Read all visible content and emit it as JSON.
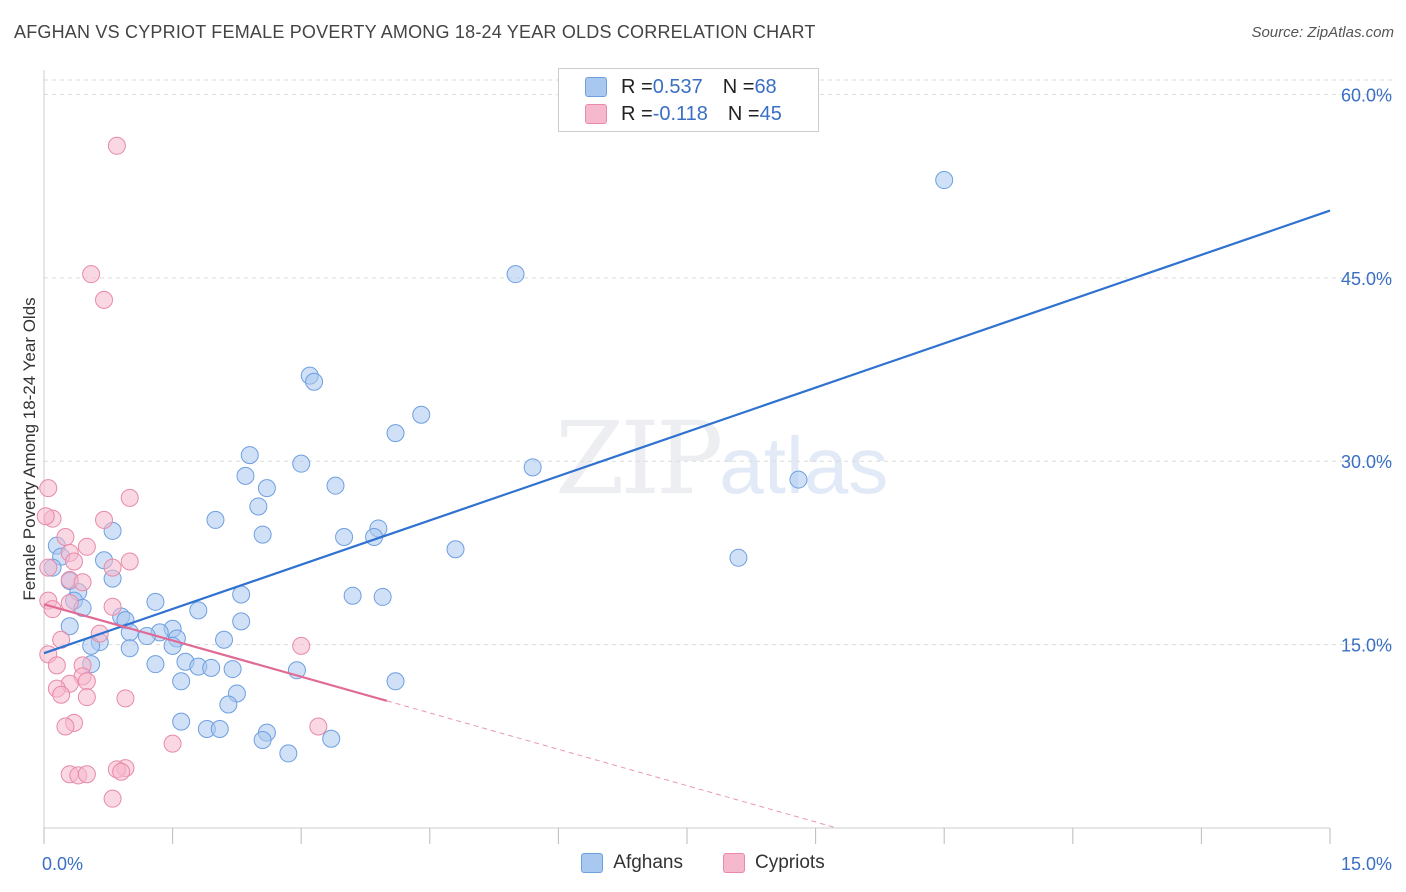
{
  "title": "AFGHAN VS CYPRIOT FEMALE POVERTY AMONG 18-24 YEAR OLDS CORRELATION CHART",
  "source": "Source: ZipAtlas.com",
  "watermark": {
    "a": "ZIP",
    "b": "atlas"
  },
  "legend": {
    "rows": [
      {
        "r_label": "R = ",
        "r_value": "0.537",
        "n_label": "N = ",
        "n_value": "68",
        "color": "#a9c8f0"
      },
      {
        "r_label": "R = ",
        "r_value": "-0.118",
        "n_label": "N = ",
        "n_value": "45",
        "color": "#f5b8cc"
      }
    ],
    "bottom": [
      "Afghans",
      "Cypriots"
    ]
  },
  "chart_data": {
    "type": "scatter",
    "title": "AFGHAN VS CYPRIOT FEMALE POVERTY AMONG 18-24 YEAR OLDS CORRELATION CHART",
    "xlabel": "",
    "ylabel": "Female Poverty Among 18-24 Year Olds",
    "xlim": [
      0,
      15
    ],
    "ylim": [
      0,
      62
    ],
    "x_tick_labels": [
      {
        "value": 0,
        "label": "0.0%"
      },
      {
        "value": 15,
        "label": "15.0%"
      }
    ],
    "y_tick_labels": [
      {
        "value": 15,
        "label": "15.0%"
      },
      {
        "value": 30,
        "label": "30.0%"
      },
      {
        "value": 45,
        "label": "45.0%"
      },
      {
        "value": 60,
        "label": "60.0%"
      }
    ],
    "grid": true,
    "series": [
      {
        "name": "Afghans",
        "color": "#a9c8f0",
        "stroke": "#6e9fe0",
        "trend": {
          "x0": 0.0,
          "y0": 14.3,
          "x1": 15.0,
          "y1": 50.5,
          "color": "#2f72d0"
        },
        "points": [
          [
            10.5,
            53.0
          ],
          [
            5.5,
            45.3
          ],
          [
            3.1,
            37.0
          ],
          [
            3.15,
            36.5
          ],
          [
            4.4,
            33.8
          ],
          [
            4.1,
            32.3
          ],
          [
            2.4,
            30.5
          ],
          [
            3.0,
            29.8
          ],
          [
            5.7,
            29.5
          ],
          [
            2.35,
            28.8
          ],
          [
            3.4,
            28.0
          ],
          [
            2.6,
            27.8
          ],
          [
            8.8,
            28.5
          ],
          [
            2.5,
            26.3
          ],
          [
            2.0,
            25.2
          ],
          [
            3.9,
            24.5
          ],
          [
            0.8,
            24.3
          ],
          [
            2.55,
            24.0
          ],
          [
            3.5,
            23.8
          ],
          [
            3.85,
            23.8
          ],
          [
            0.15,
            23.1
          ],
          [
            4.8,
            22.8
          ],
          [
            0.2,
            22.2
          ],
          [
            0.7,
            21.9
          ],
          [
            8.1,
            22.1
          ],
          [
            0.1,
            21.3
          ],
          [
            0.3,
            20.2
          ],
          [
            0.8,
            20.4
          ],
          [
            2.3,
            19.1
          ],
          [
            0.4,
            19.3
          ],
          [
            3.6,
            19.0
          ],
          [
            3.95,
            18.9
          ],
          [
            0.35,
            18.6
          ],
          [
            1.3,
            18.5
          ],
          [
            1.8,
            17.8
          ],
          [
            0.9,
            17.3
          ],
          [
            0.3,
            16.5
          ],
          [
            0.95,
            17.0
          ],
          [
            2.3,
            16.9
          ],
          [
            1.0,
            16.0
          ],
          [
            1.5,
            16.3
          ],
          [
            1.35,
            16.0
          ],
          [
            1.2,
            15.7
          ],
          [
            1.55,
            15.5
          ],
          [
            0.65,
            15.2
          ],
          [
            0.55,
            14.9
          ],
          [
            2.1,
            15.4
          ],
          [
            1.0,
            14.7
          ],
          [
            1.5,
            14.9
          ],
          [
            1.3,
            13.4
          ],
          [
            1.65,
            13.6
          ],
          [
            0.55,
            13.4
          ],
          [
            1.8,
            13.2
          ],
          [
            1.95,
            13.1
          ],
          [
            2.2,
            13.0
          ],
          [
            2.95,
            12.9
          ],
          [
            1.6,
            12.0
          ],
          [
            4.1,
            12.0
          ],
          [
            2.25,
            11.0
          ],
          [
            2.15,
            10.1
          ],
          [
            1.6,
            8.7
          ],
          [
            1.9,
            8.1
          ],
          [
            2.05,
            8.1
          ],
          [
            2.6,
            7.8
          ],
          [
            3.35,
            7.3
          ],
          [
            2.55,
            7.2
          ],
          [
            2.85,
            6.1
          ],
          [
            0.45,
            18.0
          ]
        ]
      },
      {
        "name": "Cypriots",
        "color": "#f5b8cc",
        "stroke": "#e88aa8",
        "trend": {
          "x0": 0.0,
          "y0": 18.3,
          "x1": 4.0,
          "y1": 10.4,
          "dash_x1": 15.0,
          "dash_y1": -11.4,
          "color": "#e06b96"
        },
        "points": [
          [
            0.85,
            55.8
          ],
          [
            0.55,
            45.3
          ],
          [
            0.7,
            43.2
          ],
          [
            0.05,
            27.8
          ],
          [
            1.0,
            27.0
          ],
          [
            0.1,
            25.3
          ],
          [
            0.7,
            25.2
          ],
          [
            0.25,
            23.8
          ],
          [
            0.5,
            23.0
          ],
          [
            0.3,
            22.5
          ],
          [
            0.35,
            21.8
          ],
          [
            1.0,
            21.8
          ],
          [
            0.05,
            21.3
          ],
          [
            0.8,
            21.3
          ],
          [
            0.3,
            20.3
          ],
          [
            0.45,
            20.1
          ],
          [
            0.05,
            18.6
          ],
          [
            0.3,
            18.4
          ],
          [
            0.1,
            17.9
          ],
          [
            0.8,
            18.1
          ],
          [
            0.2,
            15.4
          ],
          [
            0.65,
            15.9
          ],
          [
            0.05,
            14.2
          ],
          [
            3.0,
            14.9
          ],
          [
            0.15,
            13.3
          ],
          [
            0.45,
            13.3
          ],
          [
            0.45,
            12.4
          ],
          [
            0.5,
            12.0
          ],
          [
            0.3,
            11.8
          ],
          [
            0.15,
            11.4
          ],
          [
            0.2,
            10.9
          ],
          [
            0.5,
            10.7
          ],
          [
            0.95,
            10.6
          ],
          [
            0.35,
            8.6
          ],
          [
            0.25,
            8.3
          ],
          [
            3.2,
            8.3
          ],
          [
            1.5,
            6.9
          ],
          [
            0.95,
            4.9
          ],
          [
            0.85,
            4.8
          ],
          [
            0.9,
            4.6
          ],
          [
            0.3,
            4.4
          ],
          [
            0.4,
            4.3
          ],
          [
            0.5,
            4.4
          ],
          [
            0.8,
            2.4
          ],
          [
            0.02,
            25.5
          ]
        ]
      }
    ]
  }
}
